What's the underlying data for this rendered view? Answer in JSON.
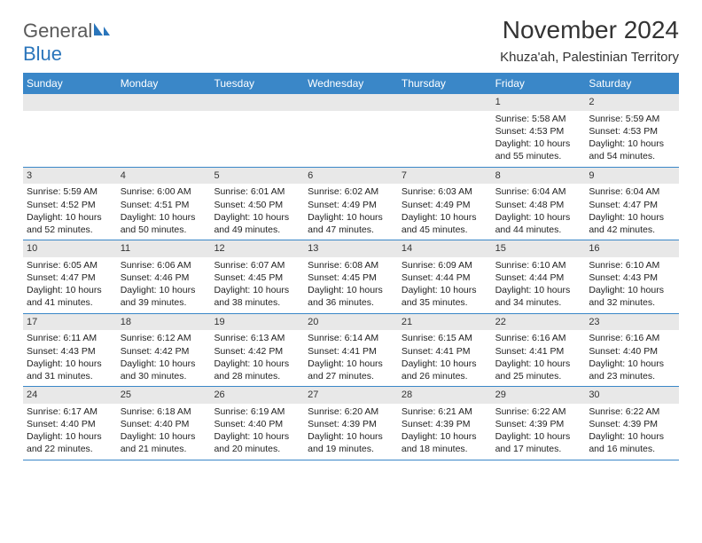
{
  "logo": {
    "general": "General",
    "blue": "Blue"
  },
  "title": "November 2024",
  "location": "Khuza'ah, Palestinian Territory",
  "colors": {
    "header_bg": "#3a87c8",
    "header_text": "#ffffff",
    "daynum_bg": "#e8e8e8",
    "border": "#3a87c8",
    "text": "#222222",
    "logo_gray": "#5a5a5a",
    "logo_blue": "#2a75bb"
  },
  "weekdays": [
    "Sunday",
    "Monday",
    "Tuesday",
    "Wednesday",
    "Thursday",
    "Friday",
    "Saturday"
  ],
  "weeks": [
    [
      null,
      null,
      null,
      null,
      null,
      {
        "n": "1",
        "sunrise": "Sunrise: 5:58 AM",
        "sunset": "Sunset: 4:53 PM",
        "daylight": "Daylight: 10 hours and 55 minutes."
      },
      {
        "n": "2",
        "sunrise": "Sunrise: 5:59 AM",
        "sunset": "Sunset: 4:53 PM",
        "daylight": "Daylight: 10 hours and 54 minutes."
      }
    ],
    [
      {
        "n": "3",
        "sunrise": "Sunrise: 5:59 AM",
        "sunset": "Sunset: 4:52 PM",
        "daylight": "Daylight: 10 hours and 52 minutes."
      },
      {
        "n": "4",
        "sunrise": "Sunrise: 6:00 AM",
        "sunset": "Sunset: 4:51 PM",
        "daylight": "Daylight: 10 hours and 50 minutes."
      },
      {
        "n": "5",
        "sunrise": "Sunrise: 6:01 AM",
        "sunset": "Sunset: 4:50 PM",
        "daylight": "Daylight: 10 hours and 49 minutes."
      },
      {
        "n": "6",
        "sunrise": "Sunrise: 6:02 AM",
        "sunset": "Sunset: 4:49 PM",
        "daylight": "Daylight: 10 hours and 47 minutes."
      },
      {
        "n": "7",
        "sunrise": "Sunrise: 6:03 AM",
        "sunset": "Sunset: 4:49 PM",
        "daylight": "Daylight: 10 hours and 45 minutes."
      },
      {
        "n": "8",
        "sunrise": "Sunrise: 6:04 AM",
        "sunset": "Sunset: 4:48 PM",
        "daylight": "Daylight: 10 hours and 44 minutes."
      },
      {
        "n": "9",
        "sunrise": "Sunrise: 6:04 AM",
        "sunset": "Sunset: 4:47 PM",
        "daylight": "Daylight: 10 hours and 42 minutes."
      }
    ],
    [
      {
        "n": "10",
        "sunrise": "Sunrise: 6:05 AM",
        "sunset": "Sunset: 4:47 PM",
        "daylight": "Daylight: 10 hours and 41 minutes."
      },
      {
        "n": "11",
        "sunrise": "Sunrise: 6:06 AM",
        "sunset": "Sunset: 4:46 PM",
        "daylight": "Daylight: 10 hours and 39 minutes."
      },
      {
        "n": "12",
        "sunrise": "Sunrise: 6:07 AM",
        "sunset": "Sunset: 4:45 PM",
        "daylight": "Daylight: 10 hours and 38 minutes."
      },
      {
        "n": "13",
        "sunrise": "Sunrise: 6:08 AM",
        "sunset": "Sunset: 4:45 PM",
        "daylight": "Daylight: 10 hours and 36 minutes."
      },
      {
        "n": "14",
        "sunrise": "Sunrise: 6:09 AM",
        "sunset": "Sunset: 4:44 PM",
        "daylight": "Daylight: 10 hours and 35 minutes."
      },
      {
        "n": "15",
        "sunrise": "Sunrise: 6:10 AM",
        "sunset": "Sunset: 4:44 PM",
        "daylight": "Daylight: 10 hours and 34 minutes."
      },
      {
        "n": "16",
        "sunrise": "Sunrise: 6:10 AM",
        "sunset": "Sunset: 4:43 PM",
        "daylight": "Daylight: 10 hours and 32 minutes."
      }
    ],
    [
      {
        "n": "17",
        "sunrise": "Sunrise: 6:11 AM",
        "sunset": "Sunset: 4:43 PM",
        "daylight": "Daylight: 10 hours and 31 minutes."
      },
      {
        "n": "18",
        "sunrise": "Sunrise: 6:12 AM",
        "sunset": "Sunset: 4:42 PM",
        "daylight": "Daylight: 10 hours and 30 minutes."
      },
      {
        "n": "19",
        "sunrise": "Sunrise: 6:13 AM",
        "sunset": "Sunset: 4:42 PM",
        "daylight": "Daylight: 10 hours and 28 minutes."
      },
      {
        "n": "20",
        "sunrise": "Sunrise: 6:14 AM",
        "sunset": "Sunset: 4:41 PM",
        "daylight": "Daylight: 10 hours and 27 minutes."
      },
      {
        "n": "21",
        "sunrise": "Sunrise: 6:15 AM",
        "sunset": "Sunset: 4:41 PM",
        "daylight": "Daylight: 10 hours and 26 minutes."
      },
      {
        "n": "22",
        "sunrise": "Sunrise: 6:16 AM",
        "sunset": "Sunset: 4:41 PM",
        "daylight": "Daylight: 10 hours and 25 minutes."
      },
      {
        "n": "23",
        "sunrise": "Sunrise: 6:16 AM",
        "sunset": "Sunset: 4:40 PM",
        "daylight": "Daylight: 10 hours and 23 minutes."
      }
    ],
    [
      {
        "n": "24",
        "sunrise": "Sunrise: 6:17 AM",
        "sunset": "Sunset: 4:40 PM",
        "daylight": "Daylight: 10 hours and 22 minutes."
      },
      {
        "n": "25",
        "sunrise": "Sunrise: 6:18 AM",
        "sunset": "Sunset: 4:40 PM",
        "daylight": "Daylight: 10 hours and 21 minutes."
      },
      {
        "n": "26",
        "sunrise": "Sunrise: 6:19 AM",
        "sunset": "Sunset: 4:40 PM",
        "daylight": "Daylight: 10 hours and 20 minutes."
      },
      {
        "n": "27",
        "sunrise": "Sunrise: 6:20 AM",
        "sunset": "Sunset: 4:39 PM",
        "daylight": "Daylight: 10 hours and 19 minutes."
      },
      {
        "n": "28",
        "sunrise": "Sunrise: 6:21 AM",
        "sunset": "Sunset: 4:39 PM",
        "daylight": "Daylight: 10 hours and 18 minutes."
      },
      {
        "n": "29",
        "sunrise": "Sunrise: 6:22 AM",
        "sunset": "Sunset: 4:39 PM",
        "daylight": "Daylight: 10 hours and 17 minutes."
      },
      {
        "n": "30",
        "sunrise": "Sunrise: 6:22 AM",
        "sunset": "Sunset: 4:39 PM",
        "daylight": "Daylight: 10 hours and 16 minutes."
      }
    ]
  ]
}
